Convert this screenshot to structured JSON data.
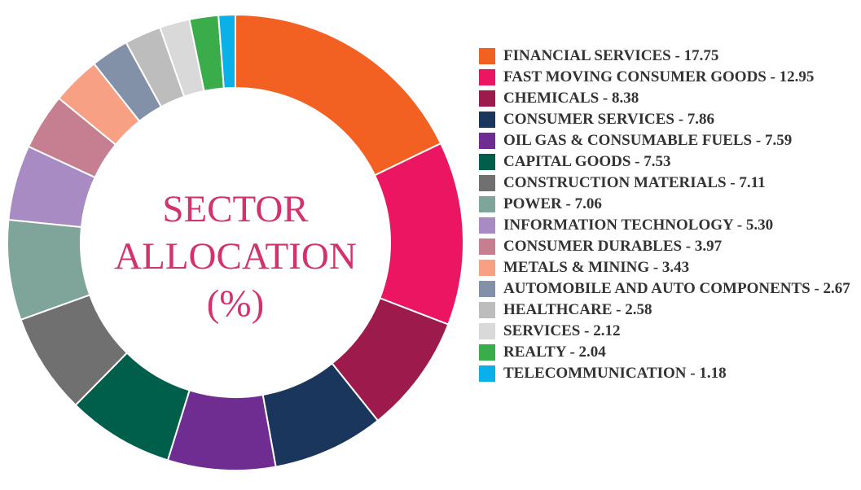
{
  "chart_data": {
    "type": "donut",
    "title": "SECTOR ALLOCATION (%)",
    "categories": [
      "FINANCIAL SERVICES - 17.75",
      "FAST MOVING CONSUMER GOODS - 12.95",
      "CHEMICALS - 8.38",
      "CONSUMER SERVICES - 7.86",
      "OIL GAS & CONSUMABLE FUELS - 7.59",
      "CAPITAL GOODS - 7.53",
      "CONSTRUCTION MATERIALS - 7.11",
      "POWER - 7.06",
      "INFORMATION TECHNOLOGY - 5.30",
      "CONSUMER DURABLES - 3.97",
      "METALS & MINING - 3.43",
      "AUTOMOBILE AND AUTO COMPONENTS - 2.67",
      "HEALTHCARE - 2.58",
      "SERVICES - 2.12",
      "REALTY - 2.04",
      "TELECOMMUNICATION - 1.18"
    ],
    "values": [
      17.75,
      12.95,
      8.38,
      7.86,
      7.59,
      7.53,
      7.11,
      7.06,
      5.3,
      3.97,
      3.43,
      2.67,
      2.58,
      2.12,
      2.04,
      1.18
    ],
    "colors": [
      "#f26122",
      "#ec1562",
      "#9c1b4c",
      "#1b365d",
      "#6f2c91",
      "#005f4b",
      "#707070",
      "#7fa59a",
      "#a98bc4",
      "#c67f91",
      "#f7a083",
      "#8391a8",
      "#bdbdbd",
      "#d9d9d9",
      "#3bac4a",
      "#0ab0e8"
    ],
    "legend": "right"
  }
}
